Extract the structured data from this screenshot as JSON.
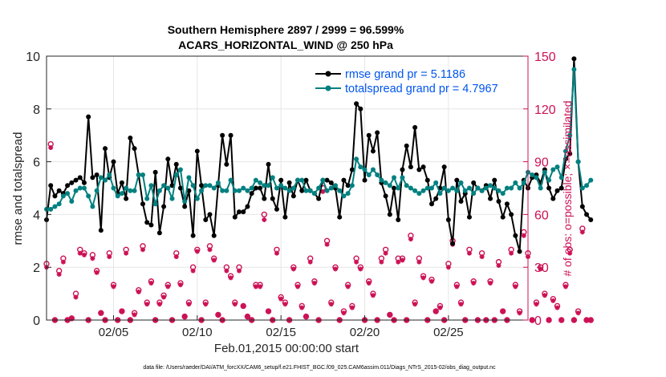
{
  "chart_data": {
    "type": "line",
    "title": "Southern Hemisphere 2897 / 2999 = 96.599%",
    "subtitle": "ACARS_HORIZONTAL_WIND @ 250 hPa",
    "xlabel": "Feb.01,2015 00:00:00 start",
    "ylabel": "rmse and totalspread",
    "ylabel_right": "# of obs: o=possible; ×=assimilated",
    "footer": "data file: /Users/raeder/DAI/ATM_forcXX/CAM6_setup/f.e21.FHIST_BGC.f09_025.CAM6assim.011/Diags_NTrS_2015-02/obs_diag_output.nc",
    "xlim": [
      1,
      29.75
    ],
    "ylim": [
      0,
      10
    ],
    "ylim_right": [
      0,
      150
    ],
    "xticks": [
      5,
      10,
      15,
      20,
      25
    ],
    "xtick_labels": [
      "02/05",
      "02/10",
      "02/15",
      "02/20",
      "02/25"
    ],
    "yticks": [
      0,
      2,
      4,
      6,
      8,
      10
    ],
    "yticks_right": [
      0,
      30,
      60,
      90,
      120,
      150
    ],
    "legend_position": "top-right",
    "colors": {
      "rmse": "#000000",
      "spread": "#008080",
      "obs": "#cc1155",
      "legend_text": "#0055ee"
    },
    "series": [
      {
        "name": "rmse grand pr = 5.1186",
        "axis": "left",
        "x0": 1.0,
        "dx": 0.25,
        "values": [
          3.8,
          5.1,
          4.7,
          4.9,
          4.8,
          5.1,
          5.2,
          5.3,
          5.4,
          5.2,
          7.7,
          5.4,
          5.5,
          3.4,
          6.5,
          5.4,
          6.0,
          4.8,
          5.2,
          4.6,
          6.9,
          6.5,
          5.5,
          4.4,
          3.7,
          3.6,
          5.6,
          3.3,
          4.3,
          6.1,
          5.1,
          5.9,
          5.0,
          4.3,
          4.9,
          3.2,
          6.4,
          5.1,
          3.8,
          4.0,
          3.2,
          5.1,
          7.0,
          5.9,
          7.0,
          3.9,
          4.1,
          4.1,
          4.3,
          4.8,
          5.0,
          5.0,
          4.6,
          5.9,
          4.6,
          4.2,
          5.3,
          3.9,
          5.2,
          4.7,
          5.3,
          4.9,
          5.3,
          4.9,
          4.8,
          4.6,
          5.3,
          5.3,
          5.2,
          5.0,
          3.9,
          5.3,
          5.1,
          5.7,
          8.2,
          8.0,
          5.3,
          7.0,
          6.4,
          7.1,
          5.2,
          4.7,
          4.0,
          5.0,
          3.8,
          5.7,
          6.6,
          5.8,
          7.3,
          5.7,
          5.8,
          5.3,
          4.4,
          4.6,
          5.0,
          5.8,
          3.8,
          2.9,
          5.3,
          4.5,
          4.8,
          3.9,
          5.2,
          5.0,
          4.9,
          5.1,
          4.6,
          5.3,
          4.5,
          3.9,
          4.4,
          4.0,
          3.2,
          2.6,
          5.3,
          5.0,
          5.4,
          5.5,
          5.2,
          5.7,
          5.0,
          4.6,
          4.9,
          5.0,
          6.1,
          6.3,
          9.9,
          6.0,
          4.3,
          4.0,
          3.8
        ]
      },
      {
        "name": "totalspread grand pr = 4.7967",
        "axis": "left",
        "x0": 1.0,
        "dx": 0.25,
        "values": [
          4.2,
          4.2,
          4.3,
          4.4,
          4.7,
          4.8,
          4.5,
          4.9,
          5.0,
          5.0,
          4.7,
          4.3,
          4.9,
          5.4,
          5.3,
          5.5,
          5.0,
          4.7,
          4.8,
          5.0,
          4.9,
          4.9,
          5.5,
          5.5,
          4.6,
          5.1,
          4.4,
          4.9,
          5.1,
          5.0,
          4.6,
          5.5,
          5.7,
          4.5,
          5.4,
          5.1,
          4.6,
          4.9,
          5.1,
          5.1,
          5.0,
          5.2,
          4.9,
          4.9,
          5.3,
          4.9,
          4.9,
          5.0,
          4.9,
          5.0,
          5.3,
          5.2,
          5.1,
          5.1,
          5.4,
          5.0,
          5.1,
          5.0,
          4.9,
          5.0,
          5.3,
          5.3,
          4.9,
          4.9,
          4.8,
          5.0,
          5.3,
          4.9,
          5.0,
          5.1,
          4.9,
          4.7,
          4.8,
          5.1,
          6.1,
          5.8,
          5.7,
          5.5,
          5.7,
          5.5,
          5.3,
          5.2,
          5.1,
          5.4,
          5.0,
          5.4,
          5.1,
          5.0,
          4.9,
          4.8,
          4.9,
          5.0,
          5.0,
          5.2,
          4.8,
          5.0,
          4.9,
          5.0,
          4.9,
          5.2,
          4.9,
          5.0,
          4.8,
          5.0,
          4.9,
          5.0,
          5.1,
          5.0,
          4.9,
          4.8,
          5.0,
          5.0,
          5.2,
          5.0,
          5.2,
          5.6,
          5.5,
          5.4,
          5.0,
          5.6,
          5.3,
          5.7,
          5.8,
          5.4,
          6.4,
          7.0,
          9.5,
          6.0,
          5.0,
          5.1,
          5.3
        ]
      },
      {
        "name": "obs possible",
        "axis": "right",
        "x0": 1.0,
        "dx": 0.25,
        "values": [
          32,
          100,
          0,
          28,
          35,
          0,
          1,
          15,
          40,
          38,
          0,
          37,
          28,
          4,
          0,
          38,
          20,
          0,
          5,
          40,
          0,
          4,
          17,
          42,
          10,
          22,
          0,
          10,
          14,
          20,
          0,
          38,
          21,
          2,
          10,
          30,
          40,
          0,
          10,
          42,
          35,
          3,
          0,
          30,
          25,
          10,
          30,
          8,
          2,
          0,
          20,
          20,
          60,
          5,
          0,
          40,
          13,
          10,
          0,
          30,
          20,
          8,
          2,
          35,
          22,
          0,
          75,
          45,
          10,
          30,
          0,
          5,
          20,
          8,
          35,
          30,
          0,
          22,
          15,
          0,
          35,
          40,
          3,
          0,
          35,
          35,
          0,
          48,
          10,
          35,
          25,
          0,
          23,
          5,
          8,
          0,
          32,
          45,
          20,
          10,
          0,
          40,
          22,
          0,
          38,
          0,
          22,
          0,
          33,
          5,
          0,
          40,
          20,
          5,
          50,
          38,
          0,
          10,
          30,
          15,
          0,
          12,
          8,
          0,
          20,
          40,
          0,
          5,
          52,
          0,
          0
        ]
      },
      {
        "name": "obs assimilated",
        "axis": "right",
        "x0": 1.0,
        "dx": 0.25,
        "values": [
          30,
          98,
          0,
          26,
          33,
          0,
          1,
          13,
          38,
          37,
          0,
          35,
          27,
          4,
          0,
          36,
          19,
          0,
          5,
          38,
          0,
          3,
          16,
          40,
          9,
          21,
          0,
          9,
          13,
          19,
          0,
          36,
          20,
          2,
          9,
          28,
          39,
          0,
          9,
          40,
          34,
          3,
          0,
          28,
          24,
          9,
          28,
          8,
          2,
          0,
          19,
          19,
          57,
          5,
          0,
          38,
          12,
          9,
          0,
          29,
          19,
          7,
          2,
          33,
          21,
          0,
          73,
          43,
          9,
          29,
          0,
          4,
          19,
          7,
          33,
          29,
          0,
          21,
          14,
          0,
          33,
          38,
          3,
          0,
          33,
          34,
          0,
          46,
          9,
          33,
          24,
          0,
          22,
          5,
          7,
          0,
          30,
          43,
          19,
          9,
          0,
          38,
          21,
          0,
          36,
          0,
          21,
          0,
          31,
          5,
          0,
          38,
          19,
          4,
          48,
          36,
          0,
          9,
          29,
          14,
          0,
          11,
          7,
          0,
          19,
          38,
          0,
          4,
          50,
          0,
          0
        ]
      }
    ]
  }
}
